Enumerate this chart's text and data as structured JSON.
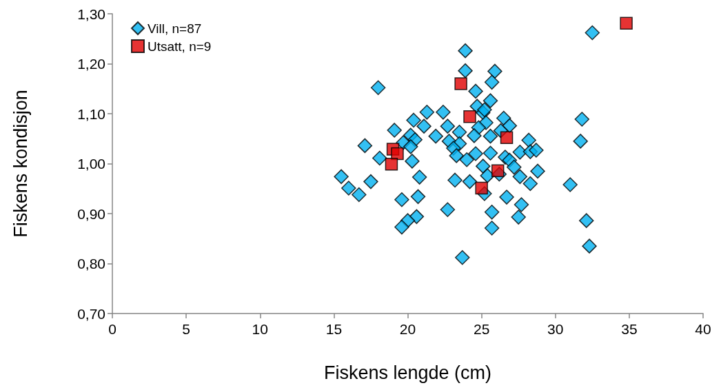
{
  "chart_data": {
    "type": "scatter",
    "xlabel": "Fiskens lengde (cm)",
    "ylabel": "Fiskens kondisjon",
    "xlim": [
      0,
      40
    ],
    "xticks": [
      0,
      5,
      10,
      15,
      20,
      25,
      30,
      35,
      40
    ],
    "ylim": [
      0.7,
      1.3
    ],
    "yticks": [
      {
        "value": 0.7,
        "label": "0,70"
      },
      {
        "value": 0.8,
        "label": "0,80"
      },
      {
        "value": 0.9,
        "label": "0,90"
      },
      {
        "value": 1.0,
        "label": "1,00"
      },
      {
        "value": 1.1,
        "label": "1,10"
      },
      {
        "value": 1.2,
        "label": "1,20"
      },
      {
        "value": 1.3,
        "label": "1,30"
      }
    ],
    "grid": false,
    "legend": "top left",
    "series": [
      {
        "name": "Vill, n=87",
        "color": "#00b0f0",
        "marker": "diamond",
        "x": [
          23.9,
          23.9,
          25.9,
          25.7,
          18.0,
          24.6,
          25.6,
          24.7,
          25.1,
          25.2,
          21.3,
          22.4,
          20.4,
          21.1,
          22.7,
          25.3,
          26.5,
          26.9,
          19.1,
          23.5,
          24.8,
          20.2,
          20.5,
          21.9,
          24.5,
          25.6,
          26.3,
          17.1,
          19.7,
          20.2,
          22.8,
          23.5,
          23.1,
          18.1,
          20.3,
          23.3,
          24.0,
          24.6,
          25.6,
          25.1,
          26.6,
          26.9,
          27.2,
          27.6,
          25.4,
          26.2,
          27.6,
          15.5,
          17.5,
          16.0,
          16.7,
          20.8,
          23.2,
          24.2,
          25.2,
          26.7,
          19.6,
          20.7,
          22.7,
          25.7,
          27.7,
          27.5,
          20.6,
          20.0,
          19.6,
          25.7,
          23.7,
          31.8,
          31.7,
          31.0,
          32.1,
          32.3,
          28.2,
          28.3,
          28.7,
          28.8,
          28.3,
          32.5
        ],
        "values": [
          1.226,
          1.186,
          1.185,
          1.163,
          1.152,
          1.145,
          1.126,
          1.115,
          1.102,
          1.108,
          1.103,
          1.103,
          1.087,
          1.075,
          1.075,
          1.082,
          1.091,
          1.076,
          1.067,
          1.063,
          1.072,
          1.057,
          1.048,
          1.055,
          1.056,
          1.055,
          1.066,
          1.036,
          1.042,
          1.034,
          1.045,
          1.04,
          1.031,
          1.011,
          1.005,
          1.016,
          1.008,
          1.02,
          1.021,
          0.995,
          1.013,
          1.007,
          0.993,
          1.023,
          0.976,
          0.979,
          0.974,
          0.974,
          0.964,
          0.951,
          0.938,
          0.973,
          0.967,
          0.964,
          0.94,
          0.933,
          0.928,
          0.934,
          0.908,
          0.903,
          0.918,
          0.893,
          0.894,
          0.886,
          0.873,
          0.871,
          0.812,
          1.089,
          1.045,
          0.958,
          0.886,
          0.835,
          1.047,
          1.024,
          1.027,
          0.985,
          0.96,
          1.262
        ]
      },
      {
        "name": "Utsatt, n=9",
        "color": "#e00000",
        "marker": "square",
        "x": [
          34.8,
          23.6,
          24.2,
          26.7,
          19.0,
          19.3,
          18.9,
          26.1,
          25.0
        ],
        "values": [
          1.281,
          1.16,
          1.094,
          1.052,
          1.029,
          1.02,
          0.999,
          0.986,
          0.951
        ]
      }
    ]
  }
}
